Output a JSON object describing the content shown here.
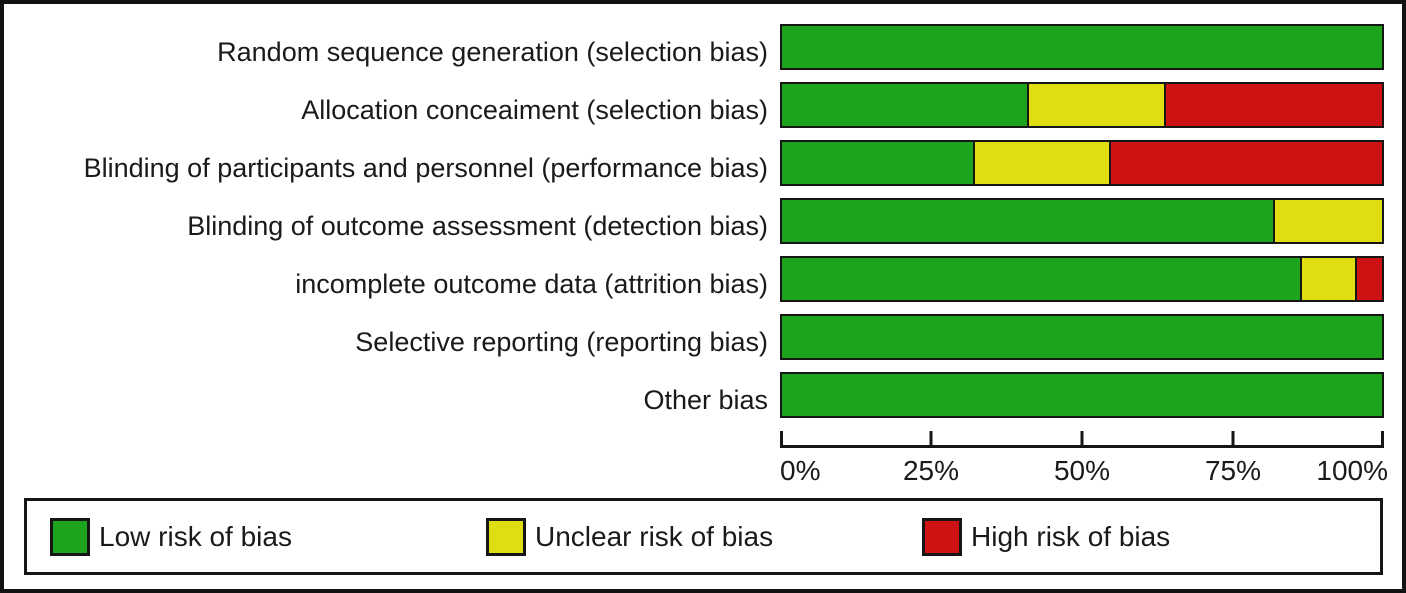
{
  "chart_data": {
    "type": "bar",
    "orientation": "horizontal",
    "stacked": true,
    "unit": "percent",
    "title": "",
    "xlabel": "",
    "ylabel": "",
    "categories": [
      "Random sequence generation (selection bias)",
      "Allocation conceaiment (selection bias)",
      "Blinding of participants and personnel (performance bias)",
      "Blinding of outcome assessment (detection bias)",
      "incomplete outcome data (attrition bias)",
      "Selective reporting (reporting bias)",
      "Other bias"
    ],
    "series": [
      {
        "name": "Low risk of bias",
        "color": "#1CA41C",
        "values": [
          100,
          40.9,
          31.8,
          81.8,
          86.4,
          100,
          100
        ]
      },
      {
        "name": "Unclear risk of bias",
        "color": "#E0DD10",
        "values": [
          0,
          22.7,
          22.7,
          18.2,
          9.1,
          0,
          0
        ]
      },
      {
        "name": "High risk of bias",
        "color": "#CE1213",
        "values": [
          0,
          36.4,
          45.5,
          0,
          4.5,
          0,
          0
        ]
      }
    ],
    "xlim": [
      0,
      100
    ],
    "x_ticks": [
      "0%",
      "25%",
      "50%",
      "75%",
      "100%"
    ],
    "grid": false,
    "legend_position": "bottom",
    "colors": {
      "bar_border": "#161616",
      "axis": "#161616",
      "text": "#1a1a1a",
      "background": "#ffffff"
    }
  }
}
